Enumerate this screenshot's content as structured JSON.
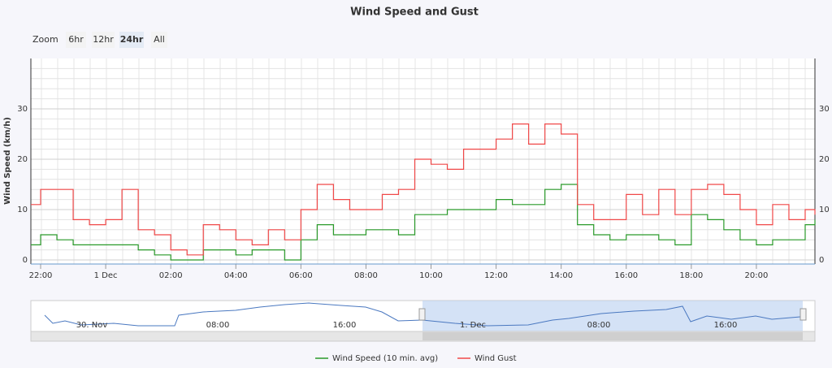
{
  "chart_data": {
    "type": "line",
    "step": true,
    "title": "Wind Speed and Gust",
    "zoom": {
      "label": "Zoom",
      "buttons": [
        "6hr",
        "12hr",
        "24hr",
        "All"
      ],
      "selected": 2
    },
    "y_label": "Wind Speed (km/h)",
    "ylim": [
      0,
      40
    ],
    "yticks": [
      0,
      10,
      20,
      30
    ],
    "ytick_colors": [
      "#2222cc",
      "#e03030",
      "#e03030",
      "#e03030"
    ],
    "xlim": [
      21.7,
      45.8
    ],
    "xticks": [
      {
        "value": 22,
        "label": "22:00"
      },
      {
        "value": 24,
        "label": "1 Dec"
      },
      {
        "value": 26,
        "label": "02:00"
      },
      {
        "value": 28,
        "label": "04:00"
      },
      {
        "value": 30,
        "label": "06:00"
      },
      {
        "value": 32,
        "label": "08:00"
      },
      {
        "value": 34,
        "label": "10:00"
      },
      {
        "value": 36,
        "label": "12:00"
      },
      {
        "value": 38,
        "label": "14:00"
      },
      {
        "value": 40,
        "label": "16:00"
      },
      {
        "value": 42,
        "label": "18:00"
      },
      {
        "value": 44,
        "label": "20:00"
      }
    ],
    "x": [
      21.7,
      22,
      22.5,
      23,
      23.5,
      24,
      24.5,
      25,
      25.5,
      26,
      26.5,
      27,
      27.5,
      28,
      28.5,
      29,
      29.5,
      30,
      30.5,
      31,
      31.5,
      32,
      32.5,
      33,
      33.5,
      34,
      34.5,
      35,
      35.5,
      36,
      36.5,
      37,
      37.5,
      38,
      38.5,
      39,
      39.5,
      40,
      40.5,
      41,
      41.5,
      42,
      42.5,
      43,
      43.5,
      44,
      44.5,
      45,
      45.5,
      45.8
    ],
    "series": [
      {
        "name": "Wind Speed (10 min. avg)",
        "color": "#2a9a2a",
        "values": [
          3,
          5,
          4,
          3,
          3,
          3,
          3,
          2,
          1,
          0,
          0,
          2,
          2,
          1,
          2,
          2,
          0,
          4,
          7,
          5,
          5,
          6,
          6,
          5,
          9,
          9,
          10,
          10,
          10,
          12,
          11,
          11,
          14,
          15,
          7,
          5,
          4,
          5,
          5,
          4,
          3,
          9,
          8,
          6,
          4,
          3,
          4,
          4,
          7,
          8
        ]
      },
      {
        "name": "Wind Gust",
        "color": "#f04848",
        "values": [
          11,
          14,
          14,
          8,
          7,
          8,
          14,
          6,
          5,
          2,
          1,
          7,
          6,
          4,
          3,
          6,
          4,
          10,
          15,
          12,
          10,
          10,
          13,
          14,
          20,
          19,
          18,
          22,
          22,
          24,
          27,
          23,
          27,
          25,
          11,
          8,
          8,
          13,
          9,
          14,
          9,
          14,
          15,
          13,
          10,
          7,
          11,
          8,
          10,
          9
        ]
      }
    ],
    "navigator": {
      "labels": [
        "30. Nov",
        "08:00",
        "16:00",
        "1. Dec",
        "08:00",
        "16:00"
      ]
    }
  }
}
